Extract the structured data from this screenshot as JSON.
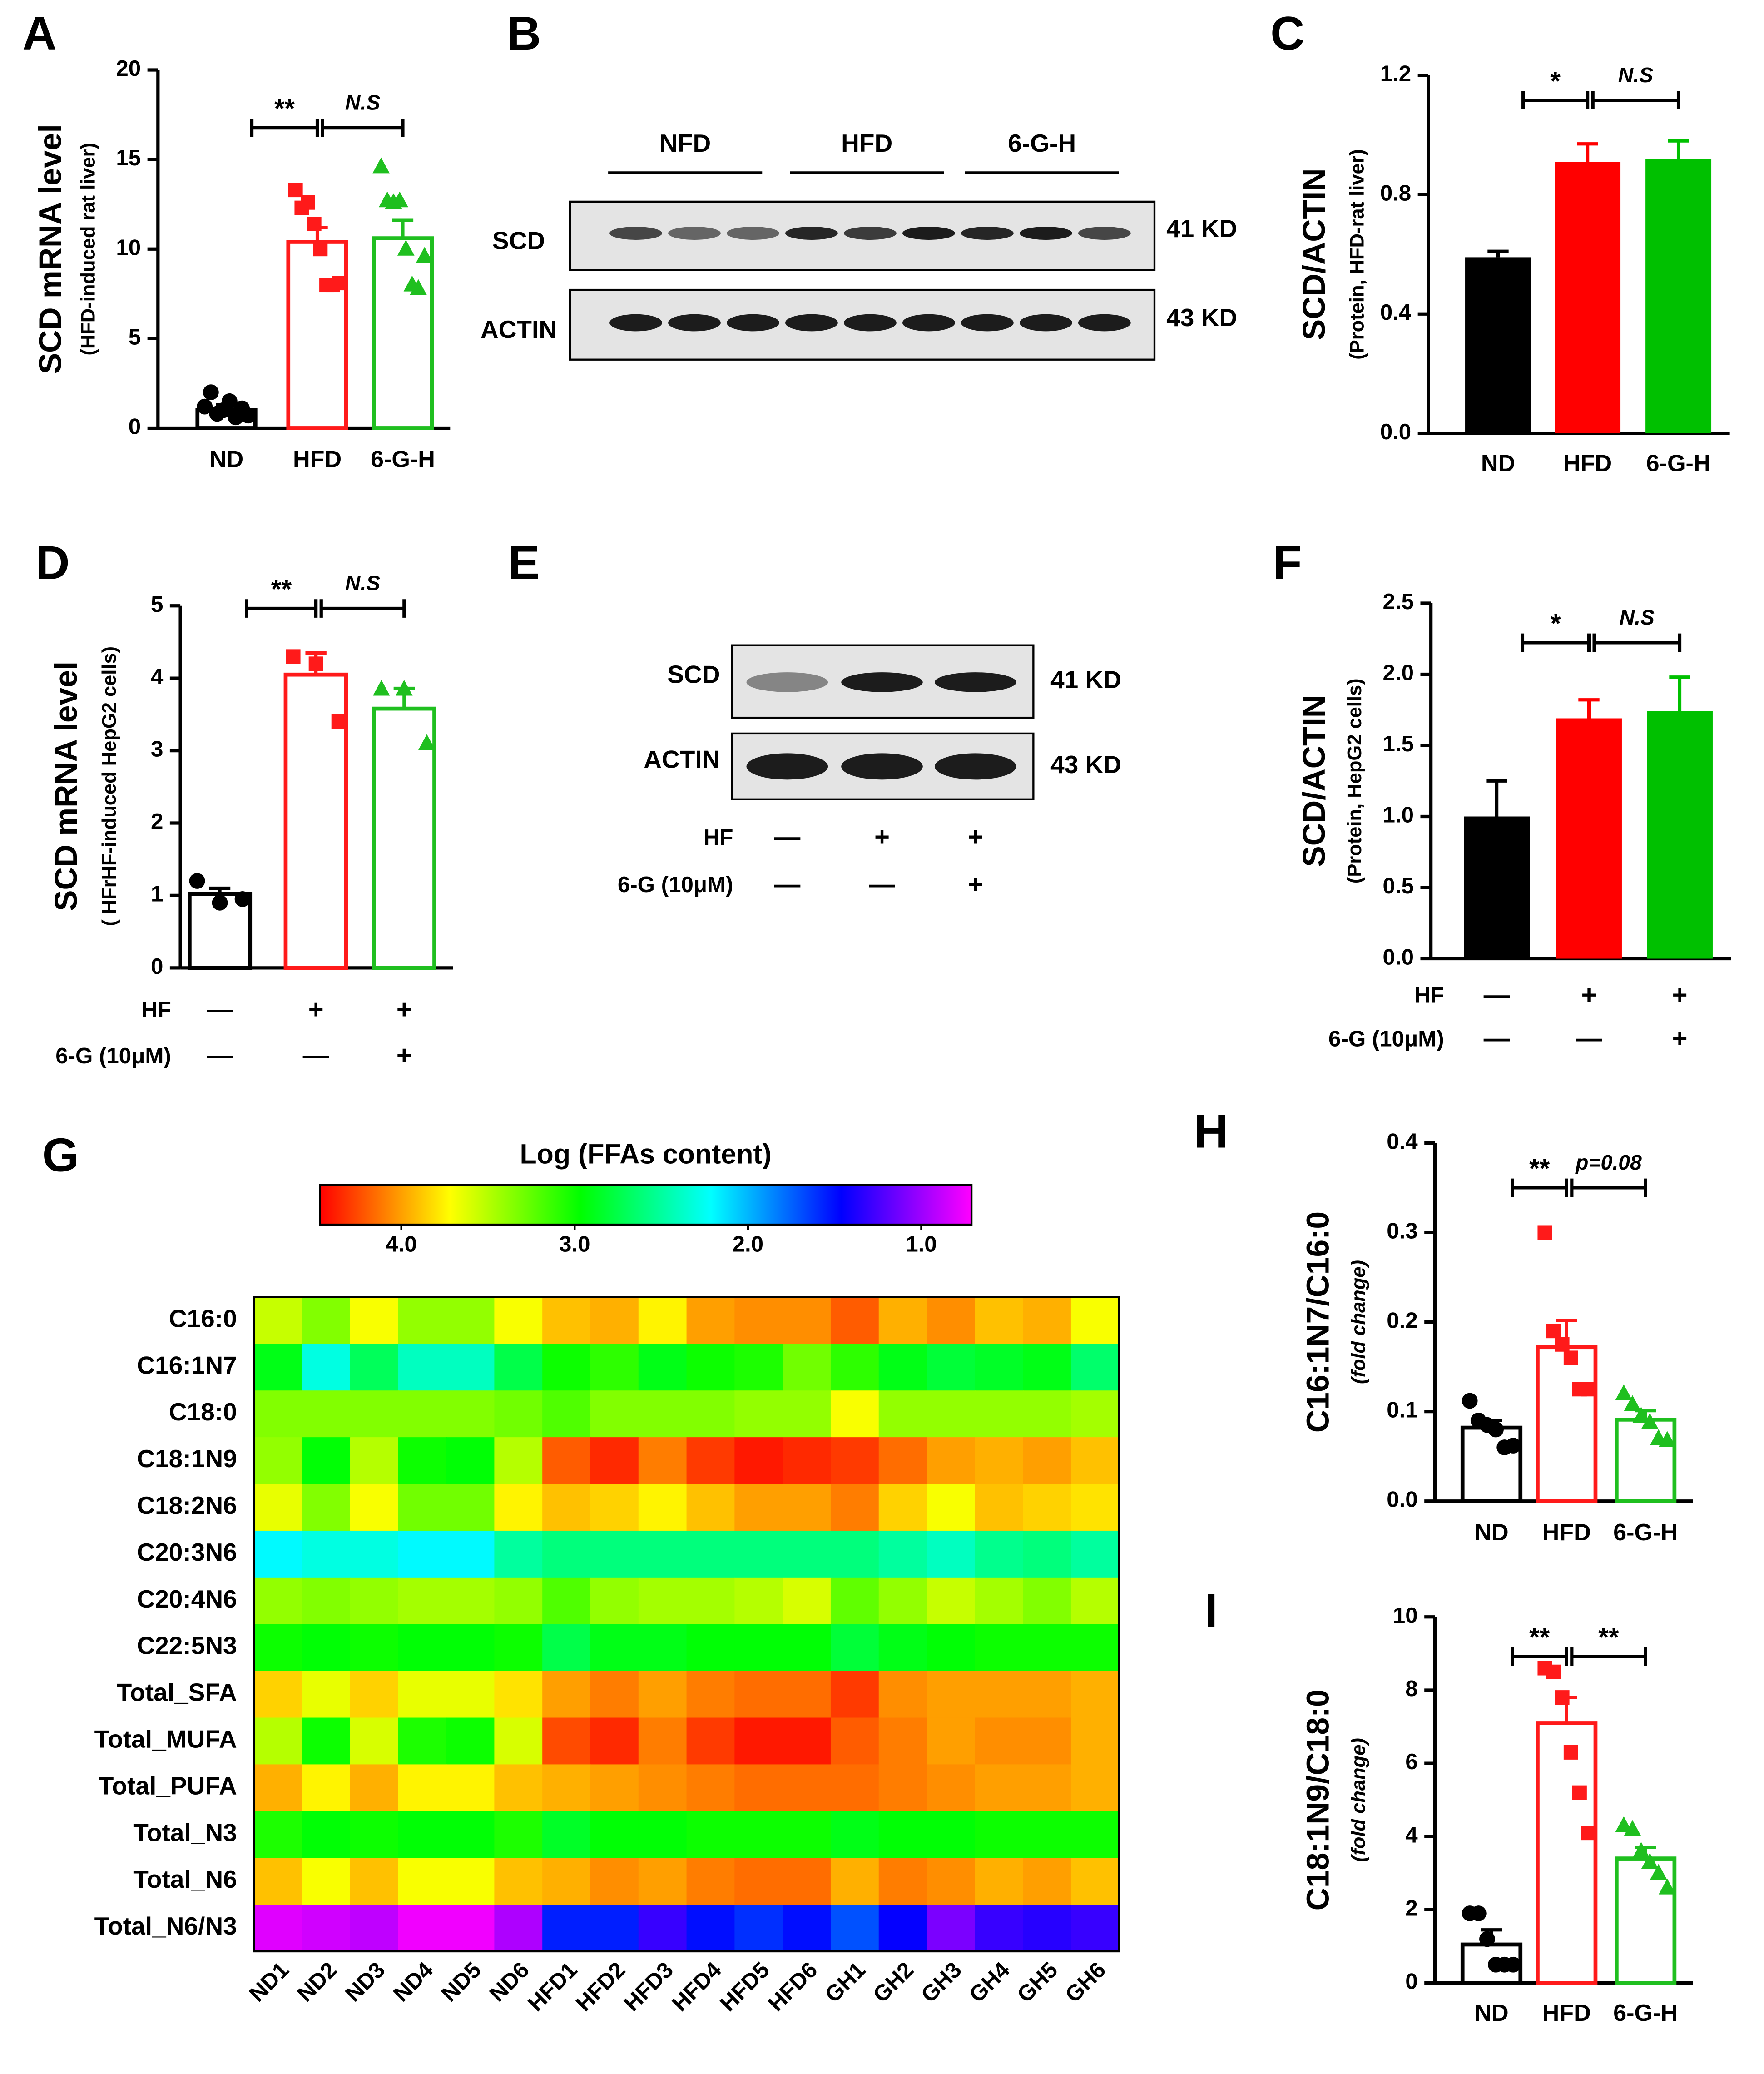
{
  "chart_data": [
    {
      "type": "bar",
      "panel": "A",
      "ylabel": "SCD mRNA level",
      "ylabel_sub": "(HFD-induced rat liver)",
      "categories": [
        "ND",
        "HFD",
        "6-G-H"
      ],
      "values": [
        1.0,
        10.4,
        10.6
      ],
      "errors": [
        0.3,
        0.8,
        1.0
      ],
      "points": [
        [
          1.2,
          2.0,
          0.8,
          1.0,
          1.5,
          0.6,
          1.1,
          0.7
        ],
        [
          13.3,
          12.3,
          12.6,
          11.4,
          10.0,
          8.0,
          8.0,
          8.1
        ],
        [
          14.6,
          12.7,
          12.6,
          12.7,
          10.0,
          8.0,
          7.8,
          9.6
        ]
      ],
      "colors": [
        "#000000",
        "#ff1a1a",
        "#1fbf1f"
      ],
      "markers": [
        "circle",
        "square",
        "triangle"
      ],
      "fill": false,
      "ylim": [
        0,
        20
      ],
      "yticks": [
        0,
        5,
        10,
        15,
        20
      ],
      "annotations": [
        "**",
        "N.S"
      ]
    },
    {
      "type": "blot",
      "panel": "B",
      "groups": [
        "NFD",
        "HFD",
        "6-G-H"
      ],
      "bands": [
        {
          "name": "SCD",
          "size": "41 KD"
        },
        {
          "name": "ACTIN",
          "size": "43 KD"
        }
      ]
    },
    {
      "type": "bar",
      "panel": "C",
      "ylabel": "SCD/ACTIN",
      "ylabel_sub": "(Protein, HFD-rat liver)",
      "categories": [
        "ND",
        "HFD",
        "6-G-H"
      ],
      "values": [
        0.59,
        0.91,
        0.92
      ],
      "errors": [
        0.02,
        0.06,
        0.06
      ],
      "colors": [
        "#000000",
        "#ff0000",
        "#00c000"
      ],
      "fill": true,
      "ylim": [
        0,
        1.2
      ],
      "yticks": [
        {
          "value": 0,
          "label": "0.0"
        },
        {
          "value": 0.4,
          "label": "0.4"
        },
        {
          "value": 0.8,
          "label": "0.8"
        },
        {
          "value": 1.2,
          "label": "1.2"
        }
      ],
      "annotations": [
        "*",
        "N.S"
      ]
    },
    {
      "type": "bar",
      "panel": "D",
      "ylabel": "SCD mRNA level",
      "ylabel_sub": "( HFrHF-induced HepG2 cells)",
      "values": [
        1.02,
        4.05,
        3.58
      ],
      "errors": [
        0.08,
        0.3,
        0.28
      ],
      "points": [
        [
          1.2,
          0.9,
          0.95
        ],
        [
          4.3,
          4.2,
          3.4
        ],
        [
          3.85,
          3.85,
          3.1
        ]
      ],
      "colors": [
        "#000000",
        "#ff1a1a",
        "#1fbf1f"
      ],
      "markers": [
        "circle",
        "square",
        "triangle"
      ],
      "fill": false,
      "ylim": [
        0,
        5
      ],
      "yticks": [
        0,
        1,
        2,
        3,
        4,
        5
      ],
      "annotations": [
        "**",
        "N.S"
      ],
      "treatments": [
        {
          "name": "HF",
          "marks": [
            "—",
            "+",
            "+"
          ]
        },
        {
          "name": "6-G (10μM)",
          "marks": [
            "—",
            "—",
            "+"
          ]
        }
      ]
    },
    {
      "type": "blot",
      "panel": "E",
      "bands": [
        {
          "name": "SCD",
          "size": "41 KD"
        },
        {
          "name": "ACTIN",
          "size": "43 KD"
        }
      ],
      "treatments": [
        {
          "name": "HF",
          "marks": [
            "—",
            "+",
            "+"
          ]
        },
        {
          "name": "6-G (10μM)",
          "marks": [
            "—",
            "—",
            "+"
          ]
        }
      ]
    },
    {
      "type": "bar",
      "panel": "F",
      "ylabel": "SCD/ACTIN",
      "ylabel_sub": "(Protein, HepG2 cells)",
      "values": [
        1.0,
        1.69,
        1.74
      ],
      "errors": [
        0.25,
        0.13,
        0.24
      ],
      "colors": [
        "#000000",
        "#ff0000",
        "#00c000"
      ],
      "fill": true,
      "ylim": [
        0,
        2.5
      ],
      "yticks": [
        {
          "value": 0,
          "label": "0.0"
        },
        {
          "value": 0.5,
          "label": "0.5"
        },
        {
          "value": 1,
          "label": "1.0"
        },
        {
          "value": 1.5,
          "label": "1.5"
        },
        {
          "value": 2,
          "label": "2.0"
        },
        {
          "value": 2.5,
          "label": "2.5"
        }
      ],
      "annotations": [
        "*",
        "N.S"
      ],
      "treatments": [
        {
          "name": "HF",
          "marks": [
            "—",
            "+",
            "+"
          ]
        },
        {
          "name": "6-G (10μM)",
          "marks": [
            "—",
            "—",
            "+"
          ]
        }
      ]
    },
    {
      "type": "heatmap",
      "panel": "G",
      "title": "Log (FFAs content)",
      "rows": [
        "C16:0",
        "C16:1N7",
        "C18:0",
        "C18:1N9",
        "C18:2N6",
        "C20:3N6",
        "C20:4N6",
        "C22:5N3",
        "Total_SFA",
        "Total_MUFA",
        "Total_PUFA",
        "Total_N3",
        "Total_N6",
        "Total_N6/N3"
      ],
      "columns": [
        "ND1",
        "ND2",
        "ND3",
        "ND4",
        "ND5",
        "ND6",
        "HFD1",
        "HFD2",
        "HFD3",
        "HFD4",
        "HFD5",
        "HFD6",
        "GH1",
        "GH2",
        "GH3",
        "GH4",
        "GH5",
        "GH6"
      ],
      "values": [
        [
          3.55,
          3.35,
          3.7,
          3.4,
          3.4,
          3.7,
          3.9,
          3.95,
          3.75,
          4.0,
          4.05,
          4.05,
          4.2,
          3.95,
          4.05,
          3.9,
          3.95,
          3.7
        ],
        [
          2.9,
          2.3,
          2.7,
          2.4,
          2.4,
          2.75,
          3.0,
          3.1,
          2.9,
          3.0,
          3.05,
          3.3,
          3.1,
          2.9,
          2.8,
          2.85,
          2.9,
          2.65
        ],
        [
          3.35,
          3.35,
          3.35,
          3.35,
          3.35,
          3.3,
          3.2,
          3.35,
          3.35,
          3.35,
          3.4,
          3.4,
          3.7,
          3.4,
          3.4,
          3.4,
          3.4,
          3.45
        ],
        [
          3.4,
          2.95,
          3.5,
          3.0,
          2.95,
          3.5,
          4.2,
          4.35,
          4.1,
          4.3,
          4.4,
          4.35,
          4.3,
          4.15,
          4.0,
          3.95,
          4.0,
          3.9
        ],
        [
          3.65,
          3.35,
          3.7,
          3.3,
          3.3,
          3.75,
          3.9,
          3.85,
          3.75,
          3.9,
          4.0,
          4.0,
          4.1,
          3.85,
          3.7,
          3.9,
          3.85,
          3.8
        ],
        [
          2.2,
          2.3,
          2.3,
          2.2,
          2.2,
          2.5,
          2.6,
          2.6,
          2.6,
          2.6,
          2.6,
          2.6,
          2.6,
          2.5,
          2.4,
          2.55,
          2.6,
          2.5
        ],
        [
          3.4,
          3.35,
          3.4,
          3.45,
          3.45,
          3.4,
          3.2,
          3.4,
          3.45,
          3.45,
          3.5,
          3.6,
          3.25,
          3.4,
          3.55,
          3.45,
          3.35,
          3.5
        ],
        [
          3.0,
          2.95,
          3.0,
          2.95,
          2.95,
          3.0,
          2.75,
          2.9,
          2.9,
          2.95,
          2.95,
          2.95,
          2.8,
          2.9,
          2.95,
          3.0,
          3.0,
          3.0
        ],
        [
          3.85,
          3.65,
          3.85,
          3.65,
          3.65,
          3.8,
          4.0,
          4.1,
          4.0,
          4.1,
          4.15,
          4.15,
          4.3,
          4.05,
          4.0,
          4.0,
          4.0,
          3.95
        ],
        [
          3.5,
          3.0,
          3.6,
          3.05,
          3.0,
          3.6,
          4.25,
          4.35,
          4.1,
          4.3,
          4.4,
          4.4,
          4.2,
          4.1,
          4.0,
          4.05,
          4.05,
          3.95
        ],
        [
          3.95,
          3.75,
          3.95,
          3.75,
          3.75,
          3.9,
          3.95,
          4.0,
          4.05,
          4.1,
          4.15,
          4.15,
          4.15,
          4.1,
          4.05,
          4.0,
          4.0,
          3.95
        ],
        [
          3.05,
          2.95,
          3.0,
          2.95,
          2.95,
          3.05,
          2.85,
          2.95,
          2.95,
          3.0,
          3.0,
          3.0,
          2.9,
          2.95,
          2.95,
          3.0,
          3.0,
          3.0
        ],
        [
          3.9,
          3.7,
          3.9,
          3.7,
          3.7,
          3.9,
          3.95,
          4.05,
          4.0,
          4.1,
          4.15,
          4.15,
          3.95,
          4.1,
          4.05,
          3.95,
          4.0,
          3.9
        ],
        [
          0.8,
          0.85,
          0.9,
          0.75,
          0.75,
          0.95,
          1.55,
          1.55,
          1.3,
          1.5,
          1.6,
          1.5,
          1.7,
          1.45,
          1.1,
          1.3,
          1.35,
          1.3
        ]
      ],
      "clim": [
        4.47,
        0.71
      ],
      "colorscale": [
        "#ff0000",
        "#ffff00",
        "#00ff00",
        "#00ffff",
        "#0000ff",
        "#ff00ff"
      ],
      "cticks": [
        {
          "value": 4,
          "label": "4.0"
        },
        {
          "value": 3,
          "label": "3.0"
        },
        {
          "value": 2,
          "label": "2.0"
        },
        {
          "value": 1,
          "label": "1.0"
        }
      ]
    },
    {
      "type": "bar",
      "panel": "H",
      "ylabel": "C16:1N7/C16:0",
      "ylabel_sub": "(fold change)",
      "categories": [
        "ND",
        "HFD",
        "6-G-H"
      ],
      "values": [
        0.082,
        0.172,
        0.091
      ],
      "errors": [
        0.008,
        0.03,
        0.01
      ],
      "points": [
        [
          0.112,
          0.09,
          0.085,
          0.08,
          0.06,
          0.062
        ],
        [
          0.3,
          0.19,
          0.175,
          0.16,
          0.125,
          0.125
        ],
        [
          0.12,
          0.108,
          0.095,
          0.088,
          0.07,
          0.068
        ]
      ],
      "colors": [
        "#000000",
        "#ff1a1a",
        "#1fbf1f"
      ],
      "markers": [
        "circle",
        "square",
        "triangle"
      ],
      "fill": false,
      "ylim": [
        0,
        0.4
      ],
      "yticks": [
        {
          "value": 0,
          "label": "0.0"
        },
        0.1,
        0.2,
        0.3,
        0.4
      ],
      "annotations": [
        "**",
        "p=0.08"
      ]
    },
    {
      "type": "bar",
      "panel": "I",
      "ylabel": "C18:1N9/C18:0",
      "ylabel_sub": "(fold change)",
      "categories": [
        "ND",
        "HFD",
        "6-G-H"
      ],
      "values": [
        1.05,
        7.1,
        3.4
      ],
      "errors": [
        0.4,
        0.7,
        0.3
      ],
      "points": [
        [
          1.9,
          1.9,
          1.2,
          0.5,
          0.5,
          0.5
        ],
        [
          8.6,
          8.5,
          7.8,
          6.3,
          5.2,
          4.1
        ],
        [
          4.3,
          4.2,
          3.6,
          3.3,
          3.0,
          2.6
        ]
      ],
      "colors": [
        "#000000",
        "#ff1a1a",
        "#1fbf1f"
      ],
      "markers": [
        "circle",
        "square",
        "triangle"
      ],
      "fill": false,
      "ylim": [
        0,
        10
      ],
      "yticks": [
        0,
        2,
        4,
        6,
        8,
        10
      ],
      "annotations": [
        "**",
        "**"
      ]
    }
  ]
}
